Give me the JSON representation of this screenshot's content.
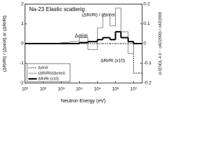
{
  "chart_data": {
    "type": "step",
    "title": "Na-23 Elastic scatterig",
    "xlabel": "Neutron Energy (eV)",
    "ylabel": "(ΔRi/Ri) / (Δσi/σi) or (ΔRi/Ri)",
    "y2label": "(σJENDL-4.0 − σAD2008) / σAD2008",
    "annotations": [
      "Δσi/σi",
      "(ΔRi/Ri) / (Δσi/σi)",
      "ΔRi/Ri (x10)"
    ],
    "xlog": true,
    "x": [
      10,
      100,
      1000,
      3000,
      10000,
      30000,
      100000,
      200000,
      500000,
      1000000,
      2000000,
      5000000,
      10000000,
      20000000
    ],
    "xlim": [
      10,
      30000000
    ],
    "xticks": [
      {
        "value": 10,
        "label": "10¹"
      },
      {
        "value": 100,
        "label": "10²"
      },
      {
        "value": 1000,
        "label": "10³"
      },
      {
        "value": 10000,
        "label": "10⁴"
      },
      {
        "value": 100000,
        "label": "10⁵"
      },
      {
        "value": 1000000,
        "label": "10⁶"
      },
      {
        "value": 10000000,
        "label": "10⁷"
      }
    ],
    "ylim": [
      -2,
      2
    ],
    "yticks": [
      -2,
      -1,
      0,
      1,
      2
    ],
    "y2lim": [
      -0.2,
      0.2
    ],
    "y2ticks": [
      -0.2,
      -0.1,
      0,
      0.1,
      0.2
    ],
    "series": [
      {
        "name": "Δσi/σi",
        "color": "#000000",
        "style": "dotted",
        "width": 1,
        "axis": "y2",
        "values": [
          0,
          0,
          0,
          0,
          0,
          0,
          0,
          0,
          0,
          0,
          0,
          0,
          -0.15,
          -0.15
        ]
      },
      {
        "name": "(ΔRi/Ri)/(Δσi/σi)",
        "color": "#888888",
        "style": "solid",
        "width": 1,
        "values": [
          0,
          0,
          0.05,
          0.1,
          0.3,
          -0.3,
          0.8,
          1.5,
          0.9,
          1.8,
          0.6,
          -0.5,
          0,
          0
        ]
      },
      {
        "name": "ΔRi/Ri (x10)",
        "color": "#000000",
        "style": "solid",
        "width": 2,
        "values": [
          0,
          0,
          0,
          0,
          0.05,
          0.1,
          0.2,
          0.3,
          0.2,
          0.6,
          0.3,
          0.1,
          0,
          0
        ]
      }
    ]
  }
}
